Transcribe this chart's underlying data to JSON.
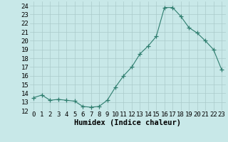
{
  "x": [
    0,
    1,
    2,
    3,
    4,
    5,
    6,
    7,
    8,
    9,
    10,
    11,
    12,
    13,
    14,
    15,
    16,
    17,
    18,
    19,
    20,
    21,
    22,
    23
  ],
  "y": [
    13.5,
    13.8,
    13.2,
    13.3,
    13.2,
    13.1,
    12.5,
    12.4,
    12.5,
    13.2,
    14.7,
    16.0,
    17.0,
    18.5,
    19.4,
    20.5,
    23.8,
    23.8,
    22.8,
    21.5,
    20.9,
    20.0,
    19.0,
    16.7
  ],
  "line_color": "#2e7d6e",
  "marker": "+",
  "marker_size": 4,
  "bg_color": "#c8e8e8",
  "grid_color": "#aacaca",
  "xlabel": "Humidex (Indice chaleur)",
  "xlim": [
    -0.5,
    23.5
  ],
  "ylim": [
    12,
    24.5
  ],
  "yticks": [
    12,
    13,
    14,
    15,
    16,
    17,
    18,
    19,
    20,
    21,
    22,
    23,
    24
  ],
  "xticks": [
    0,
    1,
    2,
    3,
    4,
    5,
    6,
    7,
    8,
    9,
    10,
    11,
    12,
    13,
    14,
    15,
    16,
    17,
    18,
    19,
    20,
    21,
    22,
    23
  ],
  "tick_font_size": 6.5,
  "label_font_size": 7.5
}
